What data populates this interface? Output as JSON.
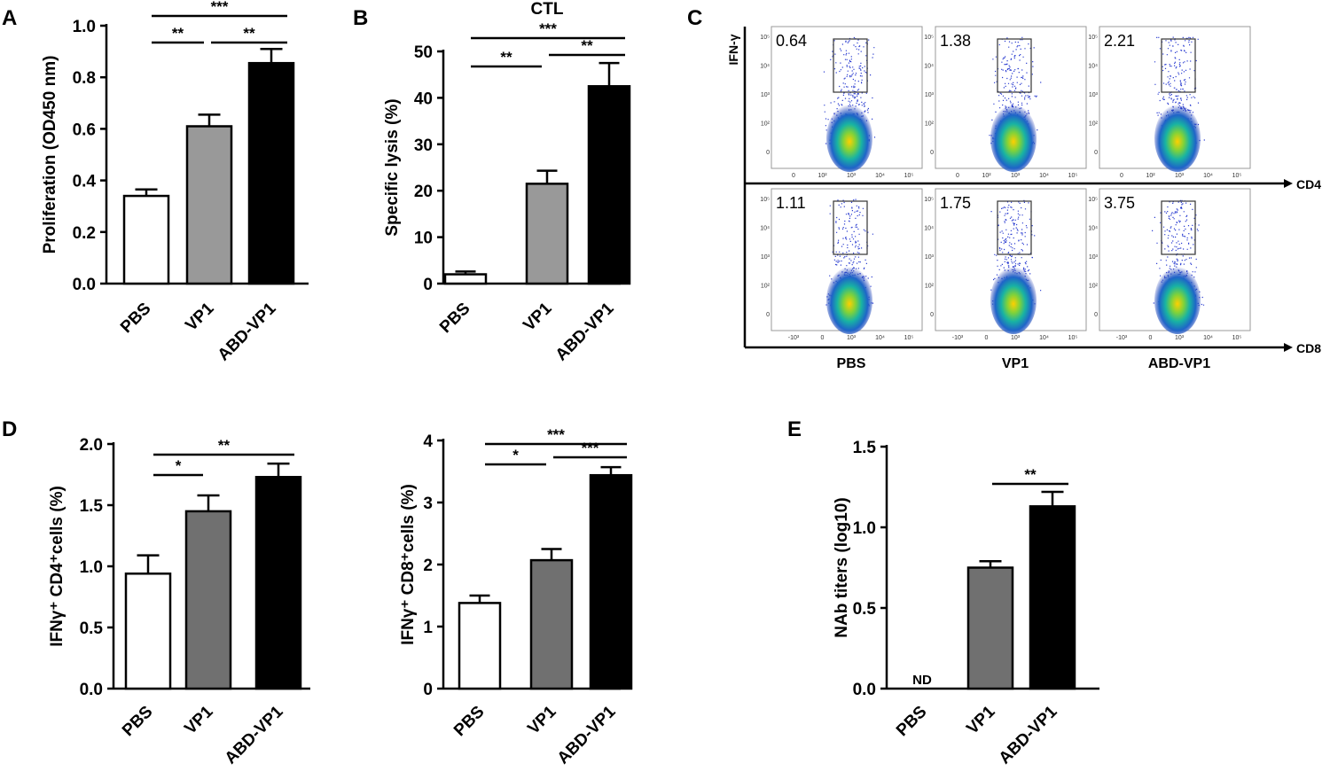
{
  "panels": {
    "a": "A",
    "b": "B",
    "c": "C",
    "d": "D",
    "e": "E"
  },
  "chart_data": [
    {
      "id": "A",
      "type": "bar",
      "categories": [
        "PBS",
        "VP1",
        "ABD-VP1"
      ],
      "values": [
        0.34,
        0.61,
        0.855
      ],
      "errors": [
        0.025,
        0.045,
        0.055
      ],
      "bar_colors": [
        "#ffffff",
        "#999999",
        "#000000"
      ],
      "title": "",
      "xlabel": "",
      "ylabel": "Proliferation (OD450 nm)",
      "ylim": [
        0,
        1.0
      ],
      "yticks": [
        "0.0",
        "0.2",
        "0.4",
        "0.6",
        "0.8",
        "1.0"
      ],
      "significance": [
        {
          "from": 0,
          "to": 1,
          "label": "**"
        },
        {
          "from": 1,
          "to": 2,
          "label": "**"
        },
        {
          "from": 0,
          "to": 2,
          "label": "***"
        }
      ]
    },
    {
      "id": "B",
      "type": "bar",
      "categories": [
        "PBS",
        "VP1",
        "ABD-VP1"
      ],
      "values": [
        2,
        21.5,
        42.5
      ],
      "errors": [
        0.6,
        2.8,
        5.0
      ],
      "bar_colors": [
        "#ffffff",
        "#999999",
        "#000000"
      ],
      "title": "CTL",
      "xlabel": "",
      "ylabel": "Specific lysis (%)",
      "ylim": [
        0,
        50
      ],
      "yticks": [
        "0",
        "10",
        "20",
        "30",
        "40",
        "50"
      ],
      "significance": [
        {
          "from": 0,
          "to": 1,
          "label": "**"
        },
        {
          "from": 1,
          "to": 2,
          "label": "**"
        },
        {
          "from": 0,
          "to": 2,
          "label": "***"
        }
      ]
    },
    {
      "id": "D1",
      "type": "bar",
      "categories": [
        "PBS",
        "VP1",
        "ABD-VP1"
      ],
      "values": [
        0.94,
        1.45,
        1.73
      ],
      "errors": [
        0.15,
        0.13,
        0.11
      ],
      "bar_colors": [
        "#ffffff",
        "#707070",
        "#000000"
      ],
      "title": "",
      "xlabel": "",
      "ylabel": "IFNγ⁺ CD4⁺cells (%)",
      "ylim": [
        0,
        2.0
      ],
      "yticks": [
        "0.0",
        "0.5",
        "1.0",
        "1.5",
        "2.0"
      ],
      "significance": [
        {
          "from": 0,
          "to": 1,
          "label": "*"
        },
        {
          "from": 0,
          "to": 2,
          "label": "**"
        }
      ]
    },
    {
      "id": "D2",
      "type": "bar",
      "categories": [
        "PBS",
        "VP1",
        "ABD-VP1"
      ],
      "values": [
        1.38,
        2.07,
        3.44
      ],
      "errors": [
        0.12,
        0.18,
        0.13
      ],
      "bar_colors": [
        "#ffffff",
        "#707070",
        "#000000"
      ],
      "title": "",
      "xlabel": "",
      "ylabel": "IFNγ⁺ CD8⁺cells (%)",
      "ylim": [
        0,
        4
      ],
      "yticks": [
        "0",
        "1",
        "2",
        "3",
        "4"
      ],
      "significance": [
        {
          "from": 0,
          "to": 1,
          "label": "*"
        },
        {
          "from": 1,
          "to": 2,
          "label": "***"
        },
        {
          "from": 0,
          "to": 2,
          "label": "***"
        }
      ]
    },
    {
      "id": "E",
      "type": "bar",
      "categories": [
        "PBS",
        "VP1",
        "ABD-VP1"
      ],
      "values": [
        null,
        0.75,
        1.13
      ],
      "errors": [
        0,
        0.04,
        0.09
      ],
      "bar_colors": [
        "#ffffff",
        "#707070",
        "#000000"
      ],
      "bar_annotations": [
        "ND",
        "",
        ""
      ],
      "title": "",
      "xlabel": "",
      "ylabel": "NAb titers (log10)",
      "ylim": [
        0,
        1.5
      ],
      "yticks": [
        "0.0",
        "0.5",
        "1.0",
        "1.5"
      ],
      "significance": [
        {
          "from": 1,
          "to": 2,
          "label": "**"
        }
      ]
    }
  ],
  "flow": {
    "y_axis": "IFN-γ",
    "row_axes": [
      "CD4",
      "CD8"
    ],
    "conditions": [
      "PBS",
      "VP1",
      "ABD-VP1"
    ],
    "percentages": [
      [
        "0.64",
        "1.38",
        "2.21"
      ],
      [
        "1.11",
        "1.75",
        "3.75"
      ]
    ],
    "row1_yticks": [
      "10⁵",
      "10⁴",
      "10³",
      "10²",
      "0"
    ],
    "row1_xticks": [
      "0",
      "10²",
      "10³",
      "10⁴",
      "10⁵"
    ],
    "row2_yticks": [
      "10⁵",
      "10⁴",
      "10³",
      "10²",
      "0"
    ],
    "row2_xticks": [
      "-10³",
      "0",
      "10³",
      "10⁴",
      "10⁵"
    ]
  }
}
